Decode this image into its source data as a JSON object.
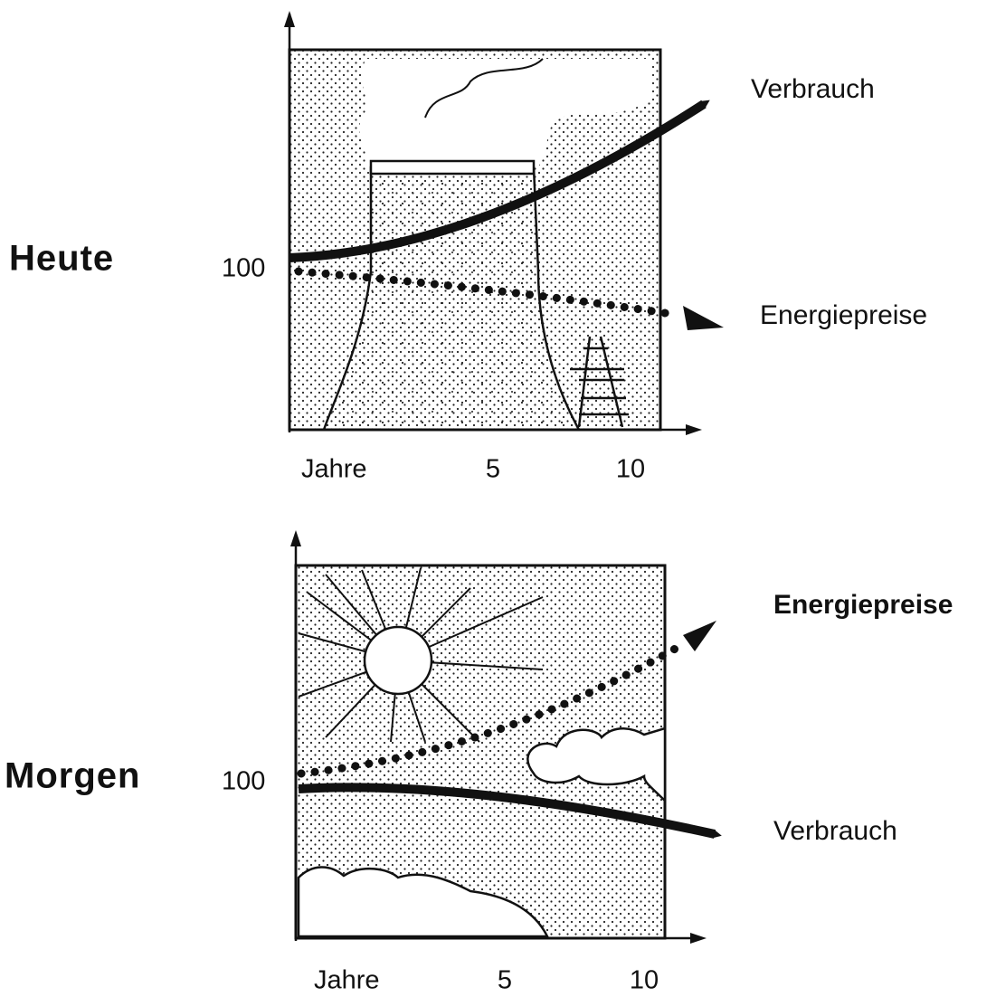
{
  "panels": [
    {
      "label": "Heute",
      "y_tick": "100",
      "x_labels": [
        "Jahre",
        "5",
        "10"
      ],
      "curves": [
        "Verbrauch",
        "Energiepreise"
      ]
    },
    {
      "label": "Morgen",
      "y_tick": "100",
      "x_labels": [
        "Jahre",
        "5",
        "10"
      ],
      "curves": [
        "Energiepreise",
        "Verbrauch"
      ]
    }
  ]
}
